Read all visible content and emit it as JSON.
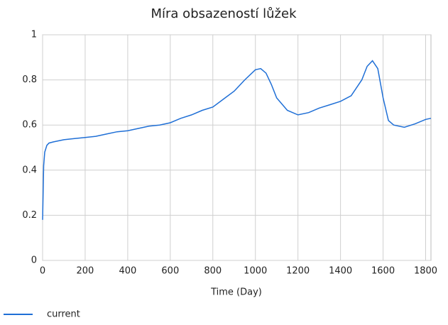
{
  "chart_data": {
    "type": "line",
    "title": "Míra obsazeností lůžek",
    "x_label": "Time (Day)",
    "x": [
      0,
      5,
      10,
      20,
      30,
      50,
      100,
      150,
      200,
      250,
      300,
      350,
      400,
      450,
      500,
      550,
      600,
      650,
      700,
      750,
      800,
      850,
      900,
      950,
      1000,
      1025,
      1050,
      1075,
      1100,
      1150,
      1200,
      1250,
      1300,
      1350,
      1400,
      1450,
      1500,
      1525,
      1550,
      1575,
      1600,
      1625,
      1650,
      1700,
      1750,
      1800,
      1825
    ],
    "series": [
      {
        "name": "current",
        "color": "#1f6fd6",
        "values": [
          0.18,
          0.42,
          0.48,
          0.51,
          0.52,
          0.525,
          0.535,
          0.54,
          0.545,
          0.55,
          0.56,
          0.57,
          0.575,
          0.585,
          0.595,
          0.6,
          0.61,
          0.63,
          0.645,
          0.665,
          0.68,
          0.715,
          0.75,
          0.8,
          0.845,
          0.85,
          0.83,
          0.78,
          0.72,
          0.665,
          0.645,
          0.655,
          0.675,
          0.69,
          0.705,
          0.73,
          0.8,
          0.86,
          0.885,
          0.85,
          0.72,
          0.62,
          0.6,
          0.59,
          0.605,
          0.625,
          0.63
        ]
      }
    ],
    "xlim": [
      0,
      1825
    ],
    "xticks": [
      0,
      200,
      400,
      600,
      800,
      1000,
      1200,
      1400,
      1600,
      1800
    ],
    "ylim": [
      0,
      1
    ],
    "yticks": [
      0,
      0.2,
      0.4,
      0.6,
      0.8,
      1
    ],
    "grid": true
  }
}
